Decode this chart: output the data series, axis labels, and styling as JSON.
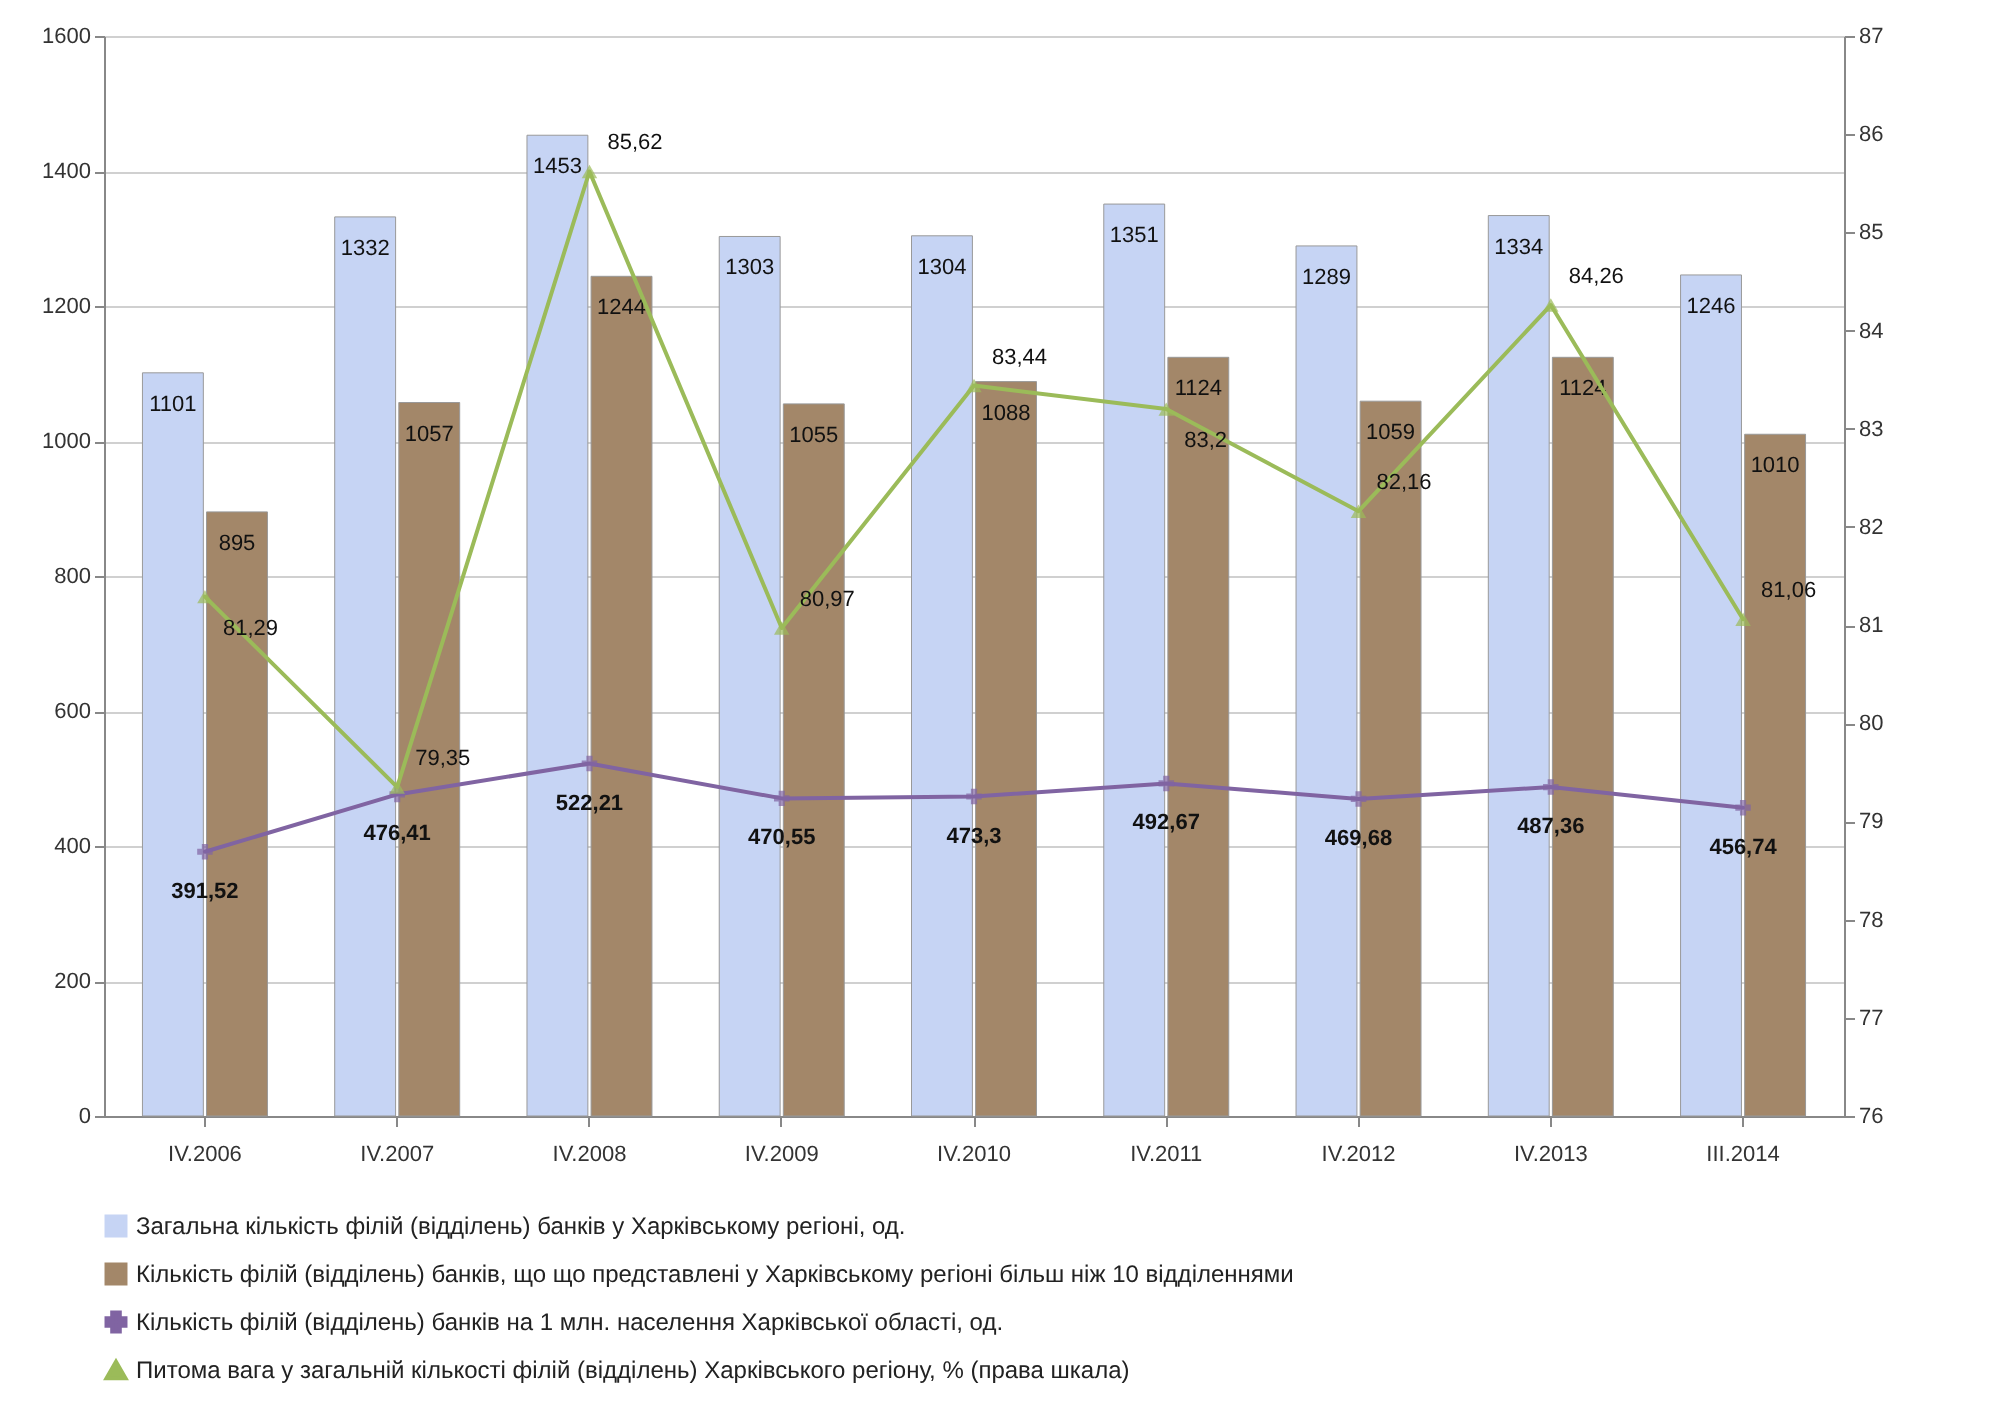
{
  "chart_data": {
    "type": "bar",
    "categories": [
      "IV.2006",
      "IV.2007",
      "IV.2008",
      "IV.2009",
      "IV.2010",
      "IV.2011",
      "IV.2012",
      "IV.2013",
      "III.2014"
    ],
    "series": [
      {
        "name": "Загальна кількість філій (відділень) банків у Харківському регіоні, од.",
        "type": "bar",
        "color": "#c6d4f4",
        "values": [
          1101,
          1332,
          1453,
          1303,
          1304,
          1351,
          1289,
          1334,
          1246
        ],
        "value_labels": [
          "1101",
          "1332",
          "1453",
          "1303",
          "1304",
          "1351",
          "1289",
          "1334",
          "1246"
        ]
      },
      {
        "name": "Кількість філій (відділень) банків, що що представлені у Харківському регіоні більш ніж 10 відділеннями",
        "type": "bar",
        "color": "#a38769",
        "values": [
          895,
          1057,
          1244,
          1055,
          1088,
          1124,
          1059,
          1124,
          1010
        ],
        "value_labels": [
          "895",
          "1057",
          "1244",
          "1055",
          "1088",
          "1124",
          "1059",
          "1124",
          "1010"
        ]
      },
      {
        "name": "Кількість філій (відділень) банків на 1 млн. населення  Харківської області, од.",
        "type": "line",
        "color": "#8064a2",
        "marker": "cross",
        "values": [
          391.52,
          476.41,
          522.21,
          470.55,
          473.3,
          492.67,
          469.68,
          487.36,
          456.74
        ],
        "value_labels": [
          "391,52",
          "476,41",
          "522,21",
          "470,55",
          "473,3",
          "492,67",
          "469,68",
          "487,36",
          "456,74"
        ]
      },
      {
        "name": "Питома вага у загальній кількості філій (відділень) Харківського регіону, % (права шкала)",
        "type": "line",
        "axis": "y2",
        "color": "#9bbb59",
        "marker": "triangle",
        "values": [
          81.29,
          79.35,
          85.62,
          80.97,
          83.44,
          83.2,
          82.16,
          84.26,
          81.06
        ],
        "value_labels": [
          "81,29",
          "79,35",
          "85,62",
          "80,97",
          "83,44",
          "83,2",
          "82,16",
          "84,26",
          "81,06"
        ]
      }
    ],
    "ylim": [
      0,
      1600
    ],
    "yticks": [
      0,
      200,
      400,
      600,
      800,
      1000,
      1200,
      1400,
      1600
    ],
    "y2lim": [
      76,
      87
    ],
    "y2ticks": [
      76,
      77,
      78,
      79,
      80,
      81,
      82,
      83,
      84,
      85,
      86,
      87
    ],
    "grid": "y",
    "legend": "bottom"
  }
}
